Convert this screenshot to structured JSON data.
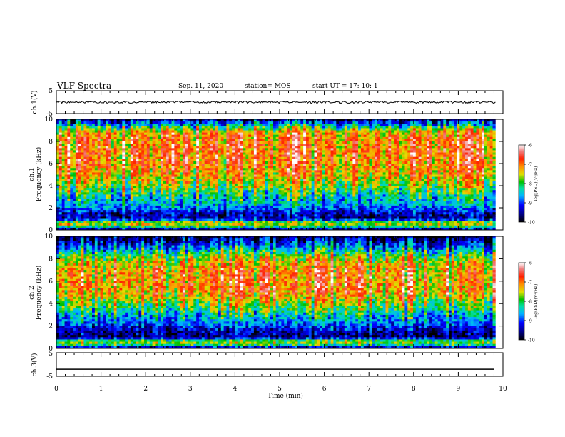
{
  "header": {
    "title": "VLF Spectra",
    "date": "Sep. 11, 2020",
    "station": "station= MOS",
    "start_ut": "start  UT =   17: 10: 1"
  },
  "chart_data": [
    {
      "type": "line",
      "panel": "ch1-waveform",
      "ylabel": "ch.1(V)",
      "ylim": [
        -5,
        5
      ],
      "y_ticks": [
        "5",
        "-5"
      ],
      "x": [
        0,
        10
      ],
      "y": [
        0,
        0
      ],
      "xlim": [
        0,
        10
      ]
    },
    {
      "type": "heatmap",
      "panel": "ch1-spectrogram",
      "ylabel_top": "ch.1",
      "ylabel": "Frequency (kHz)",
      "xlim": [
        0,
        9.83
      ],
      "ylim": [
        0,
        10
      ],
      "y_ticks": [
        "0",
        "2",
        "4",
        "6",
        "8",
        "10"
      ],
      "colorbar": {
        "label": "log(PSD)(V²/Hz)",
        "range": [
          -10,
          -6
        ],
        "ticks": [
          "-6",
          "-7",
          "-8",
          "-9",
          "-10"
        ]
      },
      "band_profile_log_psd": [
        [
          0.0,
          -10
        ],
        [
          0.2,
          -8.5
        ],
        [
          0.6,
          -7.2
        ],
        [
          1.0,
          -9.5
        ],
        [
          1.5,
          -9.3
        ],
        [
          2.2,
          -8.6
        ],
        [
          3.0,
          -8.2
        ],
        [
          4.0,
          -7.6
        ],
        [
          5.0,
          -7.1
        ],
        [
          6.0,
          -6.9
        ],
        [
          7.0,
          -6.8
        ],
        [
          8.0,
          -6.9
        ],
        [
          8.8,
          -7.0
        ],
        [
          9.3,
          -8.0
        ],
        [
          9.7,
          -8.8
        ],
        [
          10.0,
          -9.5
        ]
      ]
    },
    {
      "type": "heatmap",
      "panel": "ch2-spectrogram",
      "ylabel_top": "ch.2",
      "ylabel": "Frequency (kHz)",
      "xlim": [
        0,
        9.83
      ],
      "ylim": [
        0,
        10
      ],
      "y_ticks": [
        "0",
        "2",
        "4",
        "6",
        "8",
        "10"
      ],
      "colorbar": {
        "label": "log(PSD)(V²/Hz)",
        "range": [
          -10,
          -6
        ],
        "ticks": [
          "-6",
          "-7",
          "-8",
          "-9",
          "-10"
        ]
      },
      "band_profile_log_psd": [
        [
          0.0,
          -10
        ],
        [
          0.2,
          -8.3
        ],
        [
          0.6,
          -7.5
        ],
        [
          1.0,
          -9.6
        ],
        [
          1.5,
          -9.4
        ],
        [
          2.2,
          -8.8
        ],
        [
          3.0,
          -8.3
        ],
        [
          4.0,
          -7.6
        ],
        [
          5.0,
          -7.0
        ],
        [
          6.0,
          -6.9
        ],
        [
          7.0,
          -7.0
        ],
        [
          7.8,
          -7.3
        ],
        [
          8.5,
          -8.0
        ],
        [
          9.2,
          -8.8
        ],
        [
          9.7,
          -9.4
        ],
        [
          10.0,
          -9.7
        ]
      ]
    },
    {
      "type": "line",
      "panel": "ch3-waveform",
      "ylabel": "ch.3(V)",
      "ylim": [
        -5,
        5
      ],
      "y_ticks": [
        "5",
        "-5"
      ],
      "x": [
        0,
        10
      ],
      "y": [
        -2,
        -2
      ],
      "xlim": [
        0,
        10
      ],
      "xlabel": "Time (min)",
      "x_ticks": [
        "0",
        "1",
        "2",
        "3",
        "4",
        "5",
        "6",
        "7",
        "8",
        "9",
        "10"
      ]
    }
  ]
}
